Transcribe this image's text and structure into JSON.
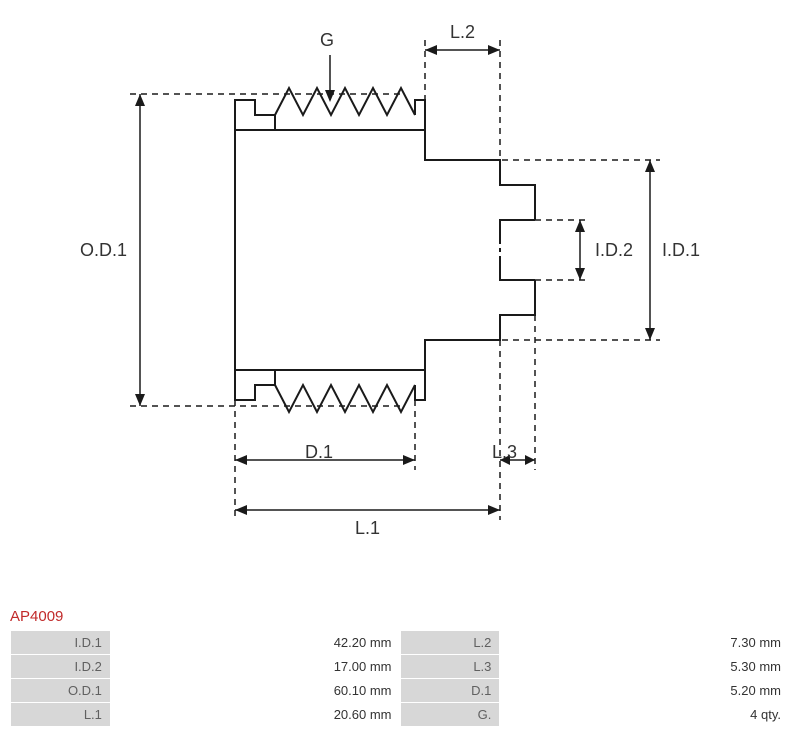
{
  "part_number": "AP4009",
  "part_color": "#c12a2a",
  "diagram": {
    "labels": {
      "G": "G",
      "OD1": "O.D.1",
      "ID1": "I.D.1",
      "ID2": "I.D.2",
      "D1": "D.1",
      "L1": "L.1",
      "L2": "L.2",
      "L3": "L.3"
    },
    "stroke_color": "#1a1a1a",
    "stroke_width": 2,
    "dash_pattern": "6,5",
    "background": "#ffffff"
  },
  "specs": {
    "rows": [
      {
        "k1": "I.D.1",
        "v1": "42.20 mm",
        "k2": "L.2",
        "v2": "7.30 mm"
      },
      {
        "k1": "I.D.2",
        "v1": "17.00 mm",
        "k2": "L.3",
        "v2": "5.30 mm"
      },
      {
        "k1": "O.D.1",
        "v1": "60.10 mm",
        "k2": "D.1",
        "v2": "5.20 mm"
      },
      {
        "k1": "L.1",
        "v1": "20.60 mm",
        "k2": "G.",
        "v2": "4 qty."
      }
    ],
    "header_bg": "#d7d7d7",
    "header_text": "#606060",
    "value_text": "#333333"
  }
}
